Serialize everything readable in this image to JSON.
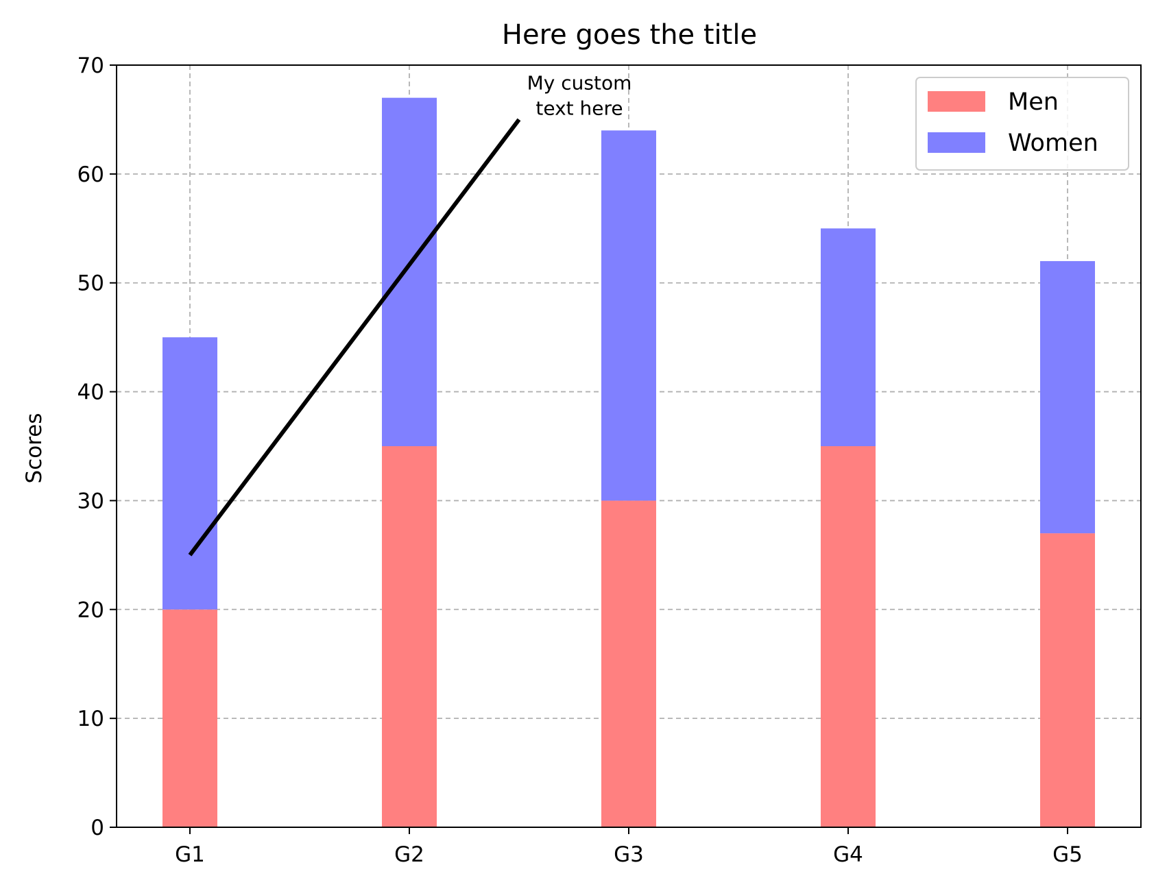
{
  "chart_data": {
    "type": "bar",
    "stacked": true,
    "title": "Here goes the title",
    "xlabel": "",
    "ylabel": "Scores",
    "categories": [
      "G1",
      "G2",
      "G3",
      "G4",
      "G5"
    ],
    "series": [
      {
        "name": "Men",
        "values": [
          20,
          35,
          30,
          35,
          27
        ],
        "color": "#ff8080"
      },
      {
        "name": "Women",
        "values": [
          25,
          32,
          34,
          20,
          25
        ],
        "color": "#8080ff"
      }
    ],
    "ylim": [
      0,
      70
    ],
    "yticks": [
      "0",
      "10",
      "20",
      "30",
      "40",
      "50",
      "60",
      "70"
    ],
    "grid": true,
    "legend_position": "top-right",
    "annotation": {
      "text_lines": [
        "My custom",
        "text here"
      ],
      "point": {
        "category": "G1",
        "y": 25
      },
      "text_at": {
        "category_offset": 1.5,
        "y": 65
      },
      "arrow_color": "#000000"
    }
  }
}
